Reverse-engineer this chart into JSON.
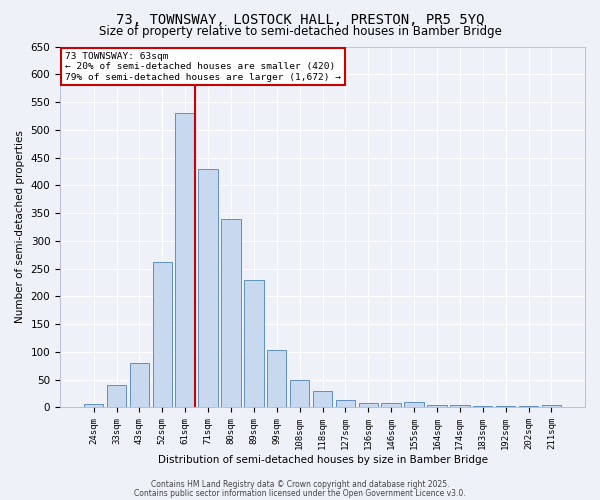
{
  "title": "73, TOWNSWAY, LOSTOCK HALL, PRESTON, PR5 5YQ",
  "subtitle": "Size of property relative to semi-detached houses in Bamber Bridge",
  "xlabel": "Distribution of semi-detached houses by size in Bamber Bridge",
  "ylabel": "Number of semi-detached properties",
  "categories": [
    "24sqm",
    "33sqm",
    "43sqm",
    "52sqm",
    "61sqm",
    "71sqm",
    "80sqm",
    "89sqm",
    "99sqm",
    "108sqm",
    "118sqm",
    "127sqm",
    "136sqm",
    "146sqm",
    "155sqm",
    "164sqm",
    "174sqm",
    "183sqm",
    "192sqm",
    "202sqm",
    "211sqm"
  ],
  "values": [
    7,
    40,
    80,
    262,
    530,
    430,
    340,
    230,
    104,
    50,
    30,
    14,
    8,
    8,
    10,
    5,
    5,
    2,
    2,
    2,
    4
  ],
  "bar_color": "#c8d8ee",
  "bar_edge_color": "#6090c0",
  "red_line_x": 4.44,
  "annotation_title": "73 TOWNSWAY: 63sqm",
  "annotation_line1": "← 20% of semi-detached houses are smaller (420)",
  "annotation_line2": "79% of semi-detached houses are larger (1,672) →",
  "annotation_box_color": "#ffffff",
  "annotation_box_edge": "#cc0000",
  "red_line_color": "#cc0000",
  "ylim": [
    0,
    650
  ],
  "background_color": "#eef2f8",
  "grid_color": "#ffffff",
  "title_fontsize": 10,
  "subtitle_fontsize": 8.5,
  "footer1": "Contains HM Land Registry data © Crown copyright and database right 2025.",
  "footer2": "Contains public sector information licensed under the Open Government Licence v3.0."
}
